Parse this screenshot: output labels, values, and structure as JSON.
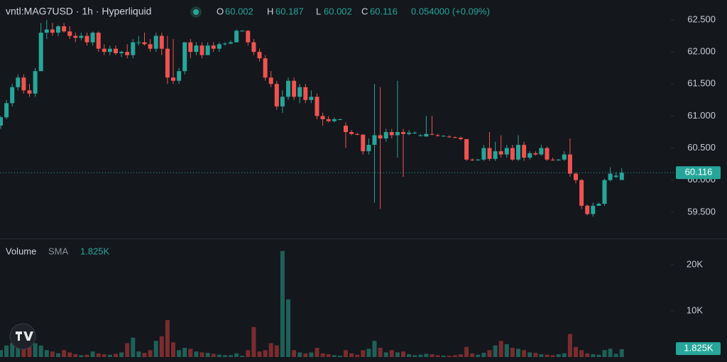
{
  "chart_data": {
    "type": "candlestick",
    "title": "vntl:MAG7USD · 1h · Hyperliquid",
    "legend": {
      "open_key": "O",
      "high_key": "H",
      "low_key": "L",
      "close_key": "C",
      "change": "0.054000 (+0.09%)"
    },
    "up_color": "#26a69a",
    "down_color": "#ef5350",
    "volume_up_color": "#1d6158",
    "volume_down_color": "#7a2c2e",
    "grid": false,
    "ylim": [
      59.1,
      62.81
    ],
    "yticks": [
      {
        "value": 62.5,
        "label": "62.500"
      },
      {
        "value": 62,
        "label": "62.000"
      },
      {
        "value": 61.5,
        "label": "61.500"
      },
      {
        "value": 61,
        "label": "61.000"
      },
      {
        "value": 60.5,
        "label": "60.500"
      },
      {
        "value": 60,
        "label": "60.000"
      },
      {
        "value": 59.5,
        "label": "59.500"
      }
    ],
    "ohlc": [
      [
        60.85,
        61.0,
        60.8,
        60.98
      ],
      [
        60.98,
        61.25,
        60.95,
        61.2
      ],
      [
        61.2,
        61.5,
        61.15,
        61.45
      ],
      [
        61.45,
        61.65,
        61.4,
        61.6
      ],
      [
        61.6,
        61.65,
        61.35,
        61.4
      ],
      [
        61.4,
        61.5,
        61.3,
        61.35
      ],
      [
        61.35,
        61.75,
        61.3,
        61.7
      ],
      [
        61.7,
        62.45,
        61.7,
        62.3
      ],
      [
        62.3,
        62.5,
        62.2,
        62.35
      ],
      [
        62.35,
        62.45,
        62.25,
        62.3
      ],
      [
        62.3,
        62.42,
        62.25,
        62.4
      ],
      [
        62.4,
        62.45,
        62.3,
        62.32
      ],
      [
        62.32,
        62.4,
        62.2,
        62.25
      ],
      [
        62.25,
        62.3,
        62.15,
        62.22
      ],
      [
        62.22,
        62.3,
        62.18,
        62.25
      ],
      [
        62.25,
        62.3,
        62.1,
        62.15
      ],
      [
        62.15,
        62.32,
        62.1,
        62.3
      ],
      [
        62.3,
        62.32,
        62.0,
        62.05
      ],
      [
        62.05,
        62.12,
        61.95,
        62.0
      ],
      [
        62.0,
        62.1,
        61.95,
        62.05
      ],
      [
        62.05,
        62.1,
        61.95,
        61.98
      ],
      [
        61.98,
        62.02,
        61.92,
        62.0
      ],
      [
        62.0,
        62.12,
        61.9,
        61.95
      ],
      [
        61.95,
        62.2,
        61.9,
        62.15
      ],
      [
        62.15,
        62.25,
        62.1,
        62.15
      ],
      [
        62.15,
        62.3,
        62.1,
        62.12
      ],
      [
        62.12,
        62.2,
        62.0,
        62.05
      ],
      [
        62.05,
        62.3,
        62.0,
        62.25
      ],
      [
        62.25,
        62.3,
        61.95,
        62.05
      ],
      [
        62.05,
        62.25,
        61.5,
        61.6
      ],
      [
        61.6,
        62.2,
        61.5,
        61.55
      ],
      [
        61.55,
        61.75,
        61.5,
        61.7
      ],
      [
        61.7,
        62.15,
        61.65,
        62.15
      ],
      [
        62.15,
        62.2,
        61.9,
        62.0
      ],
      [
        62.0,
        62.15,
        61.95,
        62.1
      ],
      [
        62.1,
        62.15,
        61.9,
        61.95
      ],
      [
        61.95,
        62.15,
        61.95,
        62.1
      ],
      [
        62.1,
        62.15,
        62.0,
        62.05
      ],
      [
        62.05,
        62.15,
        62.0,
        62.12
      ],
      [
        62.12,
        62.15,
        62.1,
        62.13
      ],
      [
        62.13,
        62.18,
        62.12,
        62.15
      ],
      [
        62.15,
        62.35,
        62.15,
        62.33
      ],
      [
        62.33,
        62.34,
        62.32,
        62.33
      ],
      [
        62.33,
        62.34,
        62.1,
        62.15
      ],
      [
        62.15,
        62.2,
        61.95,
        62.0
      ],
      [
        62.0,
        62.05,
        61.85,
        61.9
      ],
      [
        61.9,
        61.95,
        61.55,
        61.6
      ],
      [
        61.6,
        61.7,
        61.45,
        61.5
      ],
      [
        61.5,
        61.55,
        61.1,
        61.15
      ],
      [
        61.15,
        61.4,
        61.05,
        61.3
      ],
      [
        61.3,
        61.6,
        61.25,
        61.55
      ],
      [
        61.55,
        61.6,
        61.25,
        61.3
      ],
      [
        61.3,
        61.5,
        61.2,
        61.45
      ],
      [
        61.45,
        61.5,
        61.2,
        61.25
      ],
      [
        61.25,
        61.4,
        61.2,
        61.3
      ],
      [
        61.3,
        61.35,
        60.95,
        61.0
      ],
      [
        61.0,
        61.05,
        60.85,
        60.95
      ],
      [
        60.95,
        61.0,
        60.9,
        60.92
      ],
      [
        60.92,
        60.98,
        60.9,
        60.95
      ],
      [
        60.95,
        60.96,
        60.94,
        60.95
      ],
      [
        60.85,
        60.9,
        60.5,
        60.75
      ],
      [
        60.75,
        60.78,
        60.7,
        60.72
      ],
      [
        60.72,
        60.74,
        60.7,
        60.71
      ],
      [
        60.71,
        60.72,
        60.4,
        60.45
      ],
      [
        60.45,
        60.65,
        60.4,
        60.55
      ],
      [
        60.55,
        61.5,
        59.65,
        60.7
      ],
      [
        60.7,
        61.45,
        59.55,
        60.65
      ],
      [
        60.65,
        60.8,
        60.6,
        60.75
      ],
      [
        60.75,
        60.8,
        60.65,
        60.7
      ],
      [
        60.7,
        61.55,
        60.35,
        60.75
      ],
      [
        60.75,
        60.8,
        60.05,
        60.72
      ],
      [
        60.72,
        60.78,
        60.7,
        60.74
      ],
      [
        60.74,
        60.76,
        60.72,
        60.74
      ],
      [
        60.7,
        60.72,
        60.68,
        60.7
      ],
      [
        60.68,
        61.0,
        60.68,
        60.72
      ],
      [
        60.72,
        61.0,
        60.7,
        60.71
      ],
      [
        60.7,
        60.72,
        60.68,
        60.69
      ],
      [
        60.69,
        60.7,
        60.68,
        60.69
      ],
      [
        60.68,
        60.7,
        60.66,
        60.67
      ],
      [
        60.67,
        60.68,
        60.65,
        60.66
      ],
      [
        60.66,
        60.68,
        60.62,
        60.64
      ],
      [
        60.64,
        60.64,
        60.3,
        60.32
      ],
      [
        60.32,
        60.34,
        60.3,
        60.31
      ],
      [
        60.31,
        60.33,
        60.3,
        60.32
      ],
      [
        60.32,
        60.55,
        60.3,
        60.5
      ],
      [
        60.5,
        60.75,
        60.3,
        60.33
      ],
      [
        60.33,
        60.6,
        60.3,
        60.45
      ],
      [
        60.45,
        60.7,
        60.35,
        60.4
      ],
      [
        60.4,
        60.55,
        60.35,
        60.5
      ],
      [
        60.5,
        60.55,
        60.3,
        60.32
      ],
      [
        60.32,
        60.7,
        60.3,
        60.55
      ],
      [
        60.55,
        60.6,
        60.3,
        60.35
      ],
      [
        60.35,
        60.45,
        60.32,
        60.42
      ],
      [
        60.42,
        60.45,
        60.38,
        60.4
      ],
      [
        60.4,
        60.55,
        60.38,
        60.5
      ],
      [
        60.5,
        60.52,
        60.3,
        60.32
      ],
      [
        60.32,
        60.35,
        60.3,
        60.31
      ],
      [
        60.31,
        60.33,
        60.3,
        60.32
      ],
      [
        60.32,
        60.45,
        60.3,
        60.4
      ],
      [
        60.4,
        60.65,
        60.05,
        60.1
      ],
      [
        60.1,
        60.12,
        59.95,
        60.0
      ],
      [
        60.0,
        60.02,
        59.55,
        59.6
      ],
      [
        59.6,
        59.62,
        59.45,
        59.47
      ],
      [
        59.47,
        59.65,
        59.43,
        59.6
      ],
      [
        59.6,
        59.65,
        59.6,
        59.63
      ],
      [
        59.63,
        60.02,
        59.6,
        60.0
      ],
      [
        60.0,
        60.2,
        59.98,
        60.1
      ],
      [
        60.05,
        60.12,
        60.03,
        60.07
      ],
      [
        60.002,
        60.187,
        60.002,
        60.116
      ]
    ],
    "volume": {
      "title": "Volume",
      "sma_name": "SMA",
      "sma": 1825,
      "sma_label": "1.825K",
      "ylim": [
        0,
        25000
      ],
      "yticks": [
        {
          "value": 20000,
          "label": "20K"
        },
        {
          "value": 10000,
          "label": "10K"
        }
      ],
      "values": [
        1500,
        2500,
        3000,
        4000,
        5000,
        6000,
        3000,
        2500,
        1500,
        1200,
        800,
        1500,
        1000,
        600,
        400,
        500,
        1200,
        800,
        600,
        500,
        700,
        1000,
        3000,
        4200,
        1200,
        900,
        1500,
        3500,
        4500,
        8000,
        3200,
        1500,
        2000,
        1800,
        1200,
        1000,
        900,
        700,
        500,
        400,
        400,
        800,
        300,
        1500,
        6500,
        1200,
        1500,
        3000,
        2500,
        23000,
        12500,
        1500,
        1000,
        800,
        1000,
        2000,
        800,
        600,
        400,
        300,
        1500,
        800,
        500,
        1500,
        1800,
        3500,
        2000,
        1000,
        1500,
        1000,
        1200,
        600,
        400,
        500,
        700,
        600,
        400,
        300,
        300,
        400,
        600,
        2200,
        800,
        500,
        900,
        1500,
        2500,
        3500,
        2800,
        2000,
        1800,
        1500,
        1000,
        900,
        600,
        500,
        400,
        600,
        800,
        5000,
        2200,
        1500,
        800,
        600,
        500,
        1500,
        1800,
        700,
        1700
      ]
    }
  }
}
